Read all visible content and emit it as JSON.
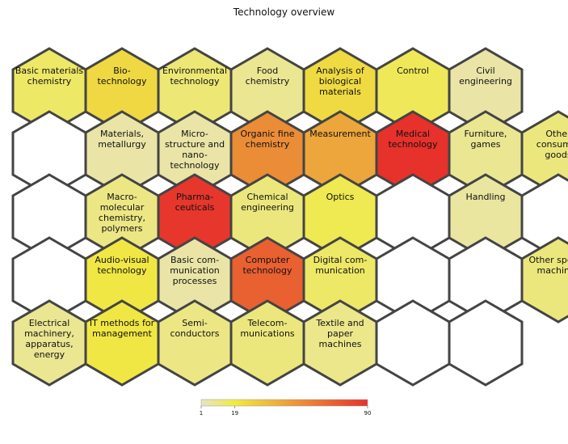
{
  "title": "Technology overview",
  "colors": {
    "scale_low": "#e8e4c3",
    "scale_mid": "#f0ea44",
    "scale_high": "#e7312b",
    "border": "#444444",
    "empty": "#ffffff"
  },
  "chart_data": {
    "type": "heatmap",
    "layout": "hexagonal grid, 8 columns x 5 rows",
    "color_scale": {
      "min": 1,
      "max": 90,
      "ticks": [
        1,
        19,
        90
      ]
    },
    "cells": [
      {
        "col": 0,
        "row": 0,
        "label": [
          "Basic materials",
          "chemistry"
        ],
        "value": 14
      },
      {
        "col": 1,
        "row": 0,
        "label": [
          "Bio-",
          "technology"
        ],
        "value": 26
      },
      {
        "col": 2,
        "row": 0,
        "label": [
          "Environmental",
          "technology"
        ],
        "value": 12
      },
      {
        "col": 3,
        "row": 0,
        "label": [
          "Food",
          "chemistry"
        ],
        "value": 8
      },
      {
        "col": 4,
        "row": 0,
        "label": [
          "Analysis of",
          "biological",
          "materials"
        ],
        "value": 25
      },
      {
        "col": 5,
        "row": 0,
        "label": [
          "Control"
        ],
        "value": 16
      },
      {
        "col": 6,
        "row": 0,
        "label": [
          "Civil",
          "engineering"
        ],
        "value": 5
      },
      {
        "col": 0,
        "row": 1,
        "label": [],
        "value": null
      },
      {
        "col": 1,
        "row": 1,
        "label": [
          "Materials,",
          "metallurgy"
        ],
        "value": 5
      },
      {
        "col": 2,
        "row": 1,
        "label": [
          "Micro-",
          "structure and",
          "nano-",
          "technology"
        ],
        "value": 5
      },
      {
        "col": 3,
        "row": 1,
        "label": [
          "Organic fine",
          "chemistry"
        ],
        "value": 55
      },
      {
        "col": 4,
        "row": 1,
        "label": [
          "Measurement"
        ],
        "value": 45
      },
      {
        "col": 5,
        "row": 1,
        "label": [
          "Medical",
          "technology"
        ],
        "value": 90
      },
      {
        "col": 6,
        "row": 1,
        "label": [
          "Furniture,",
          "games"
        ],
        "value": 8
      },
      {
        "col": 7,
        "row": 1,
        "label": [
          "Other",
          "consumer",
          "goods"
        ],
        "value": 11
      },
      {
        "col": 0,
        "row": 2,
        "label": [],
        "value": null
      },
      {
        "col": 1,
        "row": 2,
        "label": [
          "Macro-",
          "molecular",
          "chemistry,",
          "polymers"
        ],
        "value": 10
      },
      {
        "col": 2,
        "row": 2,
        "label": [
          "Pharma-",
          "ceuticals"
        ],
        "value": 88
      },
      {
        "col": 3,
        "row": 2,
        "label": [
          "Chemical",
          "engineering"
        ],
        "value": 11
      },
      {
        "col": 4,
        "row": 2,
        "label": [
          "Optics"
        ],
        "value": 17
      },
      {
        "col": 5,
        "row": 2,
        "label": [],
        "value": null
      },
      {
        "col": 6,
        "row": 2,
        "label": [
          "Handling"
        ],
        "value": 6
      },
      {
        "col": 7,
        "row": 2,
        "label": [],
        "value": null
      },
      {
        "col": 0,
        "row": 3,
        "label": [],
        "value": null
      },
      {
        "col": 1,
        "row": 3,
        "label": [
          "Audio-visual",
          "technology"
        ],
        "value": 20
      },
      {
        "col": 2,
        "row": 3,
        "label": [
          "Basic com-",
          "munication",
          "processes"
        ],
        "value": 5
      },
      {
        "col": 3,
        "row": 3,
        "label": [
          "Computer",
          "technology"
        ],
        "value": 72
      },
      {
        "col": 4,
        "row": 3,
        "label": [
          "Digital com-",
          "munication"
        ],
        "value": 14
      },
      {
        "col": 5,
        "row": 3,
        "label": [],
        "value": null
      },
      {
        "col": 6,
        "row": 3,
        "label": [],
        "value": null
      },
      {
        "col": 7,
        "row": 3,
        "label": [
          "Other special",
          "machines"
        ],
        "value": 11
      },
      {
        "col": 0,
        "row": 4,
        "label": [
          "Electrical",
          "machinery,",
          "apparatus,",
          "energy"
        ],
        "value": 8
      },
      {
        "col": 1,
        "row": 4,
        "label": [
          "IT methods for",
          "management"
        ],
        "value": 20
      },
      {
        "col": 2,
        "row": 4,
        "label": [
          "Semi-",
          "conductors"
        ],
        "value": 10
      },
      {
        "col": 3,
        "row": 4,
        "label": [
          "Telecom-",
          "munications"
        ],
        "value": 11
      },
      {
        "col": 4,
        "row": 4,
        "label": [
          "Textile and",
          "paper",
          "machines"
        ],
        "value": 9
      },
      {
        "col": 5,
        "row": 4,
        "label": [],
        "value": null
      },
      {
        "col": 6,
        "row": 4,
        "label": [],
        "value": null
      }
    ]
  }
}
